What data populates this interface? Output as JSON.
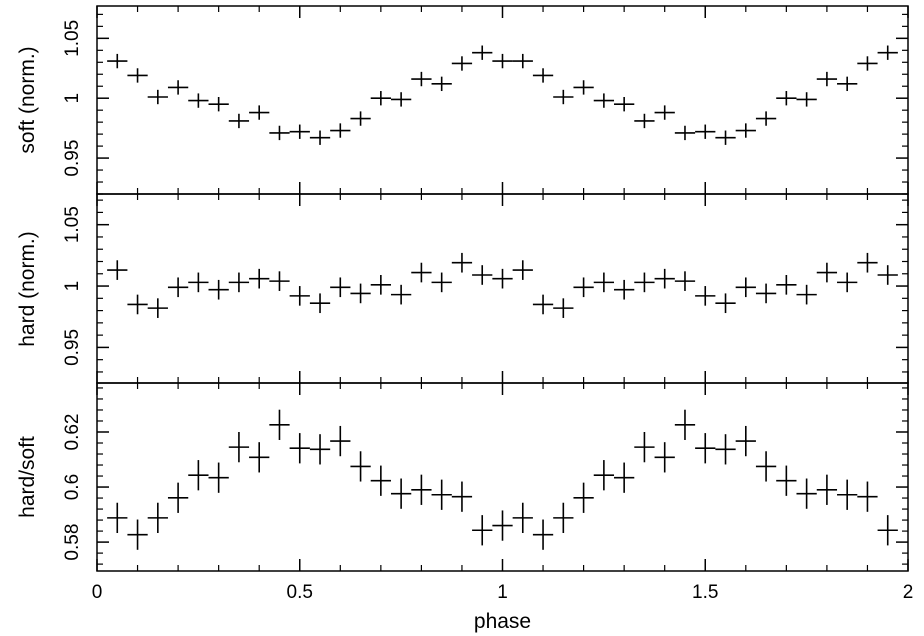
{
  "chart_data": [
    {
      "type": "scatter",
      "panel": "top",
      "ylabel": "soft (norm.)",
      "xlim": [
        0,
        2
      ],
      "ylim": [
        0.92,
        1.077
      ],
      "yticks": [
        0.95,
        1,
        1.05
      ],
      "ytick_labels": [
        "0.95",
        "1",
        "1.05"
      ],
      "x_half_width": 0.025,
      "series": [
        {
          "x": [
            0.05,
            0.1,
            0.15,
            0.2,
            0.25,
            0.3,
            0.35,
            0.4,
            0.45,
            0.5,
            0.55,
            0.6,
            0.65,
            0.7,
            0.75,
            0.8,
            0.85,
            0.9,
            0.95,
            1.0,
            1.05,
            1.1,
            1.15,
            1.2,
            1.25,
            1.3,
            1.35,
            1.4,
            1.45,
            1.5,
            1.55,
            1.6,
            1.65,
            1.7,
            1.75,
            1.8,
            1.85,
            1.9,
            1.95
          ],
          "y": [
            1.031,
            1.019,
            1.001,
            1.009,
            0.998,
            0.995,
            0.981,
            0.988,
            0.971,
            0.972,
            0.967,
            0.973,
            0.983,
            1.0,
            0.999,
            1.016,
            1.012,
            1.029,
            1.038,
            1.031,
            1.031,
            1.019,
            1.001,
            1.009,
            0.998,
            0.995,
            0.981,
            0.988,
            0.971,
            0.972,
            0.967,
            0.973,
            0.983,
            1.0,
            0.999,
            1.016,
            1.012,
            1.029,
            1.038
          ],
          "yerr": [
            0.006,
            0.006,
            0.006,
            0.006,
            0.006,
            0.006,
            0.006,
            0.006,
            0.006,
            0.006,
            0.006,
            0.006,
            0.006,
            0.006,
            0.006,
            0.006,
            0.006,
            0.006,
            0.006,
            0.006,
            0.006,
            0.006,
            0.006,
            0.006,
            0.006,
            0.006,
            0.006,
            0.006,
            0.006,
            0.006,
            0.006,
            0.006,
            0.006,
            0.006,
            0.006,
            0.006,
            0.006,
            0.006,
            0.006
          ]
        }
      ]
    },
    {
      "type": "scatter",
      "panel": "middle",
      "ylabel": "hard (norm.)",
      "xlim": [
        0,
        2
      ],
      "ylim": [
        0.921,
        1.075
      ],
      "yticks": [
        0.95,
        1,
        1.05
      ],
      "ytick_labels": [
        "0.95",
        "1",
        "1.05"
      ],
      "x_half_width": 0.025,
      "series": [
        {
          "x": [
            0.05,
            0.1,
            0.15,
            0.2,
            0.25,
            0.3,
            0.35,
            0.4,
            0.45,
            0.5,
            0.55,
            0.6,
            0.65,
            0.7,
            0.75,
            0.8,
            0.85,
            0.9,
            0.95,
            1.0,
            1.05,
            1.1,
            1.15,
            1.2,
            1.25,
            1.3,
            1.35,
            1.4,
            1.45,
            1.5,
            1.55,
            1.6,
            1.65,
            1.7,
            1.75,
            1.8,
            1.85,
            1.9,
            1.95
          ],
          "y": [
            1.013,
            0.985,
            0.982,
            0.999,
            1.003,
            0.997,
            1.003,
            1.006,
            1.004,
            0.992,
            0.986,
            0.999,
            0.994,
            1.001,
            0.993,
            1.011,
            1.003,
            1.019,
            1.009,
            1.006,
            1.013,
            0.985,
            0.982,
            0.999,
            1.003,
            0.997,
            1.003,
            1.006,
            1.004,
            0.992,
            0.986,
            0.999,
            0.994,
            1.001,
            0.993,
            1.011,
            1.003,
            1.019,
            1.009
          ],
          "yerr": [
            0.008,
            0.008,
            0.008,
            0.008,
            0.008,
            0.008,
            0.008,
            0.008,
            0.008,
            0.008,
            0.008,
            0.008,
            0.008,
            0.008,
            0.008,
            0.008,
            0.008,
            0.008,
            0.008,
            0.008,
            0.008,
            0.008,
            0.008,
            0.008,
            0.008,
            0.008,
            0.008,
            0.008,
            0.008,
            0.008,
            0.008,
            0.008,
            0.008,
            0.008,
            0.008,
            0.008,
            0.008,
            0.008,
            0.008
          ]
        }
      ]
    },
    {
      "type": "scatter",
      "panel": "bottom",
      "ylabel": "hard/soft",
      "xlabel": "phase",
      "xlim": [
        0,
        2
      ],
      "ylim": [
        0.5695,
        0.6378
      ],
      "yticks": [
        0.58,
        0.6,
        0.62
      ],
      "ytick_labels": [
        "0.58",
        "0.6",
        "0.62"
      ],
      "xticks": [
        0,
        0.5,
        1,
        1.5,
        2
      ],
      "xtick_labels": [
        "0",
        "0.5",
        "1",
        "1.5",
        "2"
      ],
      "x_half_width": 0.025,
      "series": [
        {
          "x": [
            0.05,
            0.1,
            0.15,
            0.2,
            0.25,
            0.3,
            0.35,
            0.4,
            0.45,
            0.5,
            0.55,
            0.6,
            0.65,
            0.7,
            0.75,
            0.8,
            0.85,
            0.9,
            0.95,
            1.0,
            1.05,
            1.1,
            1.15,
            1.2,
            1.25,
            1.3,
            1.35,
            1.4,
            1.45,
            1.5,
            1.55,
            1.6,
            1.65,
            1.7,
            1.75,
            1.8,
            1.85,
            1.9,
            1.95
          ],
          "y": [
            0.5888,
            0.5827,
            0.5888,
            0.5961,
            0.6043,
            0.6034,
            0.6145,
            0.6108,
            0.6226,
            0.6141,
            0.6137,
            0.6167,
            0.6075,
            0.6023,
            0.5976,
            0.599,
            0.5972,
            0.5965,
            0.5843,
            0.586,
            0.5888,
            0.5827,
            0.5888,
            0.5961,
            0.6043,
            0.6034,
            0.6145,
            0.6108,
            0.6226,
            0.6141,
            0.6137,
            0.6167,
            0.6075,
            0.6023,
            0.5976,
            0.599,
            0.5972,
            0.5965,
            0.5843
          ],
          "yerr": [
            0.0055,
            0.0055,
            0.0055,
            0.0055,
            0.0055,
            0.0055,
            0.0055,
            0.0055,
            0.0055,
            0.0055,
            0.0055,
            0.0055,
            0.0055,
            0.0055,
            0.0055,
            0.0055,
            0.0055,
            0.0055,
            0.0055,
            0.0055,
            0.0055,
            0.0055,
            0.0055,
            0.0055,
            0.0055,
            0.0055,
            0.0055,
            0.0055,
            0.0055,
            0.0055,
            0.0055,
            0.0055,
            0.0055,
            0.0055,
            0.0055,
            0.0055,
            0.0055,
            0.0055,
            0.0055
          ]
        }
      ]
    }
  ]
}
